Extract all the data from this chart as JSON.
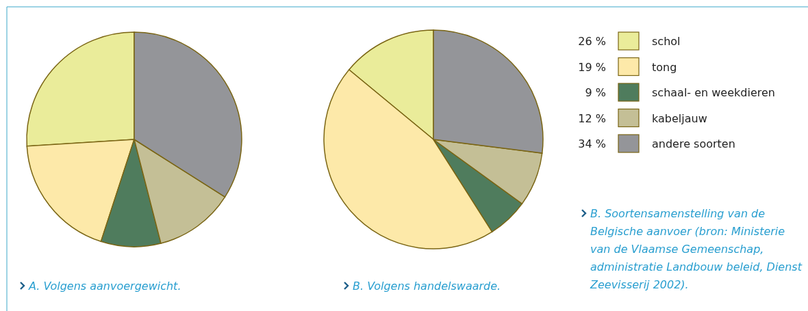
{
  "chart_data": [
    {
      "type": "pie",
      "categories": [
        "schol",
        "tong",
        "schaal- en weekdieren",
        "kabeljauw",
        "andere soorten"
      ],
      "values": [
        26,
        19,
        9,
        12,
        34
      ],
      "value_labels": [
        "26 %",
        "19 %",
        "9 %",
        "12 %",
        "34 %"
      ],
      "colors": [
        "#eaec9a",
        "#fde9a9",
        "#4f7c5d",
        "#c4bf96",
        "#949599"
      ],
      "legend": "right",
      "annotations": [
        "A. Volgens aanvoergewicht."
      ]
    },
    {
      "type": "pie",
      "categories": [
        null,
        null,
        null,
        null,
        null
      ],
      "values": [
        14,
        45,
        6,
        8,
        27
      ],
      "colors": [
        "#eaec9a",
        "#fde9a9",
        "#4f7c5d",
        "#c4bf96",
        "#949599"
      ],
      "annotations": [
        "B. Volgens  handelswaarde.",
        "B. Soortensamenstelling van de Belgische aanvoer (bron: Ministerie van de Vlaamse Gemeenschap, administratie Landbouw beleid, Dienst Zeevisserij 2002)."
      ]
    }
  ]
}
